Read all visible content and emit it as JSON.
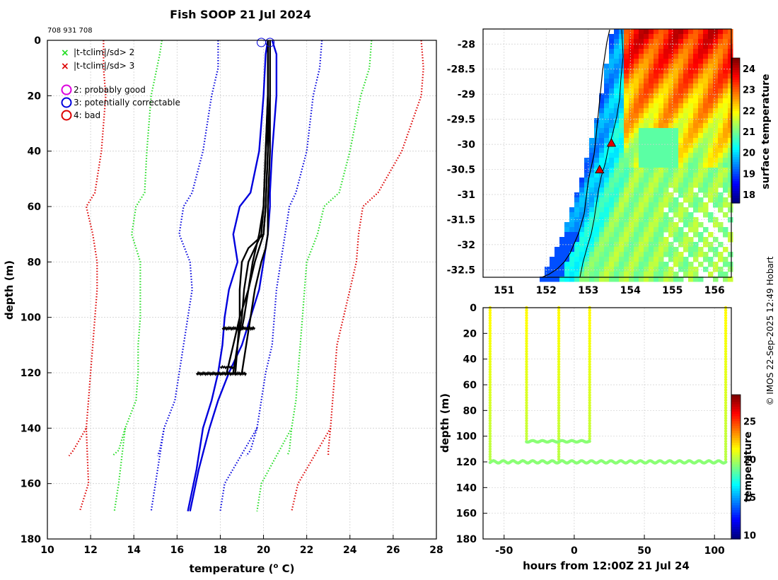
{
  "title": "Fish SOOP 21 Jul 2024",
  "platform_id": "708 931 708",
  "credit": "© IMOS 22-Sep-2025 12:49 Hobart",
  "legend": {
    "flags": [
      {
        "label": "|t-tclim|/sd> 2",
        "color": "#22dd22",
        "marker": "x"
      },
      {
        "label": "|t-tclim|/sd> 3",
        "color": "#dd0000",
        "marker": "x"
      }
    ],
    "qc": [
      {
        "label": "2: probably good",
        "color": "#dd00dd"
      },
      {
        "label": "3: potentially correctable",
        "color": "#0000dd"
      },
      {
        "label": "4: bad",
        "color": "#dd0000"
      }
    ]
  },
  "chart_data": [
    {
      "id": "profiles",
      "type": "line",
      "xlabel": "temperature (o C)",
      "xlabel_prefix": "temperature (",
      "xlabel_sup": "o",
      "xlabel_suffix": " C)",
      "ylabel": "depth (m)",
      "xlim": [
        10,
        28
      ],
      "ylim": [
        0,
        180
      ],
      "y_inverted": true,
      "xticks": [
        "10",
        "12",
        "14",
        "16",
        "18",
        "20",
        "22",
        "24",
        "26",
        "28"
      ],
      "yticks": [
        "0",
        "20",
        "40",
        "60",
        "80",
        "100",
        "120",
        "140",
        "160",
        "180"
      ],
      "grid": true,
      "climatology_envelopes": [
        {
          "name": "red-left",
          "color": "#dd0000",
          "x": [
            12.6,
            12.6,
            12.7,
            12.5,
            12.2,
            11.8,
            12.1,
            12.3,
            12.3,
            12.2,
            12.1,
            12.0,
            11.9,
            11.8,
            11.2,
            11.0
          ],
          "y": [
            0,
            10,
            20,
            40,
            55,
            60,
            70,
            80,
            90,
            100,
            110,
            120,
            130,
            140,
            148,
            150
          ]
        },
        {
          "name": "green-left",
          "color": "#22dd22",
          "x": [
            15.3,
            15.2,
            14.8,
            14.6,
            14.5,
            14.1,
            13.9,
            14.3,
            14.3,
            14.3,
            14.2,
            14.2,
            14.1,
            13.6,
            13.3,
            13.0
          ],
          "y": [
            0,
            5,
            20,
            40,
            55,
            60,
            70,
            80,
            90,
            100,
            110,
            120,
            130,
            140,
            148,
            150
          ]
        },
        {
          "name": "blue-left",
          "color": "#0000dd",
          "x": [
            17.9,
            17.9,
            17.6,
            17.2,
            16.7,
            16.3,
            16.1,
            16.6,
            16.7,
            16.5,
            16.3,
            16.1,
            15.9,
            15.4,
            15.2,
            15.1
          ],
          "y": [
            0,
            10,
            20,
            40,
            55,
            60,
            70,
            80,
            90,
            100,
            110,
            120,
            130,
            140,
            148,
            150
          ]
        },
        {
          "name": "blue-right",
          "color": "#0000dd",
          "x": [
            22.7,
            22.6,
            22.3,
            22.0,
            21.5,
            21.2,
            21.0,
            20.8,
            20.6,
            20.5,
            20.4,
            20.1,
            19.9,
            19.7,
            19.4,
            19.2
          ],
          "y": [
            0,
            10,
            20,
            40,
            55,
            60,
            70,
            80,
            90,
            100,
            110,
            120,
            130,
            140,
            148,
            150
          ]
        },
        {
          "name": "green-right",
          "color": "#22dd22",
          "x": [
            25.0,
            24.9,
            24.5,
            24.0,
            23.5,
            22.8,
            22.5,
            22.0,
            21.9,
            21.8,
            21.7,
            21.6,
            21.5,
            21.3,
            21.2,
            21.1
          ],
          "y": [
            0,
            10,
            20,
            40,
            55,
            60,
            70,
            80,
            90,
            100,
            110,
            120,
            130,
            140,
            148,
            150
          ]
        },
        {
          "name": "red-right",
          "color": "#dd0000",
          "x": [
            27.3,
            27.4,
            27.3,
            26.4,
            25.3,
            24.6,
            24.4,
            24.3,
            24.0,
            23.7,
            23.4,
            23.3,
            23.2,
            23.1,
            23.0,
            23.0
          ],
          "y": [
            0,
            10,
            20,
            40,
            55,
            60,
            70,
            80,
            90,
            100,
            110,
            120,
            130,
            140,
            148,
            150
          ]
        }
      ],
      "climatology_envelopes_deep": [
        {
          "name": "red-left-deep",
          "color": "#dd0000",
          "x": [
            12.1,
            11.9,
            11.5
          ],
          "y": [
            140,
            160,
            170
          ]
        },
        {
          "name": "green-left-deep",
          "color": "#22dd22",
          "x": [
            13.7,
            13.3,
            13.1
          ],
          "y": [
            140,
            160,
            170
          ]
        },
        {
          "name": "blue-left-deep",
          "color": "#0000dd",
          "x": [
            15.4,
            15.0,
            14.8
          ],
          "y": [
            140,
            160,
            170
          ]
        },
        {
          "name": "blue-right-deep",
          "color": "#0000dd",
          "x": [
            18.6,
            18.2,
            18.0
          ],
          "y": [
            140,
            160,
            170
          ]
        },
        {
          "name": "green-right-deep",
          "color": "#22dd22",
          "x": [
            20.4,
            19.9,
            19.7
          ],
          "y": [
            140,
            160,
            170
          ]
        },
        {
          "name": "red-right-deep",
          "color": "#dd0000",
          "x": [
            22.4,
            21.6,
            21.3
          ],
          "y": [
            140,
            160,
            170
          ]
        }
      ],
      "blue_profiles": [
        {
          "name": "blue-profile-1",
          "x": [
            20.2,
            20.1,
            20.0,
            19.8,
            19.4,
            18.9,
            18.6,
            18.8,
            18.4,
            18.2,
            18.1,
            17.9,
            17.6,
            17.2,
            16.9,
            16.5
          ],
          "y": [
            0,
            5,
            20,
            40,
            55,
            60,
            70,
            80,
            90,
            100,
            110,
            120,
            130,
            140,
            155,
            170
          ]
        },
        {
          "name": "blue-profile-2",
          "x": [
            20.4,
            20.6,
            20.6,
            20.4,
            20.3,
            20.3,
            20.2,
            20.0,
            19.8,
            19.4,
            19.0,
            18.4,
            17.9,
            17.5,
            17.0,
            16.6
          ],
          "y": [
            0,
            5,
            20,
            40,
            55,
            60,
            70,
            80,
            90,
            100,
            110,
            120,
            130,
            140,
            155,
            170
          ]
        }
      ],
      "black_profiles": [
        {
          "name": "black-profile-1",
          "x": [
            20.2,
            20.2,
            20.1,
            20.0,
            19.9,
            19.6,
            19.3,
            19.1,
            19.0,
            18.8,
            18.6
          ],
          "y": [
            0,
            20,
            40,
            60,
            70,
            75,
            80,
            90,
            100,
            110,
            120
          ]
        },
        {
          "name": "black-profile-2",
          "x": [
            20.3,
            20.3,
            20.2,
            20.1,
            20.0,
            19.8,
            19.6,
            19.3,
            18.9,
            18.6,
            18.3
          ],
          "y": [
            0,
            20,
            40,
            60,
            70,
            75,
            80,
            90,
            100,
            110,
            120
          ]
        },
        {
          "name": "black-profile-3",
          "x": [
            20.3,
            20.3,
            20.3,
            20.2,
            20.2,
            20.1,
            19.9,
            19.6,
            19.4,
            19.2,
            19.0
          ],
          "y": [
            0,
            20,
            40,
            60,
            70,
            75,
            80,
            90,
            100,
            110,
            120
          ]
        },
        {
          "name": "black-profile-4",
          "x": [
            20.2,
            20.2,
            20.2,
            20.1,
            20.0,
            19.3,
            19.0,
            18.9,
            18.9,
            18.8,
            18.7
          ],
          "y": [
            0,
            20,
            40,
            60,
            70,
            75,
            80,
            90,
            100,
            110,
            120
          ]
        },
        {
          "name": "black-profile-5",
          "x": [
            20.2,
            20.2,
            20.1,
            20.0,
            19.8,
            19.5,
            19.3,
            19.1,
            19.0
          ],
          "y": [
            0,
            20,
            40,
            60,
            70,
            80,
            90,
            100,
            104
          ]
        }
      ],
      "surface_markers": [
        {
          "x": 19.9,
          "y": 0
        },
        {
          "x": 20.3,
          "y": 0
        }
      ]
    },
    {
      "id": "sst-map",
      "type": "heatmap",
      "xlim": [
        150.5,
        156.4
      ],
      "ylim": [
        -32.65,
        -27.7
      ],
      "xticks": [
        "151",
        "152",
        "153",
        "154",
        "155",
        "156"
      ],
      "yticks": [
        "-28",
        "-28.5",
        "-29",
        "-29.5",
        "-30",
        "-30.5",
        "-31",
        "-31.5",
        "-32",
        "-32.5"
      ],
      "colorbar_label": "surface temperature",
      "colorbar_ticks": [
        "18",
        "19",
        "20",
        "21",
        "22",
        "23",
        "24"
      ],
      "colorbar_range": [
        17.6,
        24.5
      ],
      "track_points": [
        {
          "lon": 153.55,
          "lat": -29.97
        },
        {
          "lon": 153.27,
          "lat": -30.5
        }
      ]
    },
    {
      "id": "time-depth",
      "type": "scatter",
      "xlabel": "hours from 12:00Z 21 Jul 24",
      "ylabel": "depth (m)",
      "xlim": [
        -65,
        112
      ],
      "ylim": [
        0,
        180
      ],
      "y_inverted": true,
      "xticks": [
        "-50",
        "0",
        "50",
        "100"
      ],
      "yticks": [
        "0",
        "20",
        "40",
        "60",
        "80",
        "100",
        "120",
        "140",
        "160",
        "180"
      ],
      "colorbar_label": "temperature",
      "colorbar_ticks": [
        "10",
        "15",
        "20",
        "25"
      ],
      "colorbar_range": [
        9.5,
        28.5
      ],
      "drops_x": [
        -60,
        -34,
        -11,
        11,
        108
      ],
      "drop_bottoms": [
        118,
        104,
        120,
        104,
        120
      ],
      "bottom_trace_shallow": {
        "from": -34,
        "to": 11,
        "depth": 104
      },
      "bottom_trace_deep": {
        "from": -60,
        "to": 108,
        "depth": 120
      }
    }
  ]
}
